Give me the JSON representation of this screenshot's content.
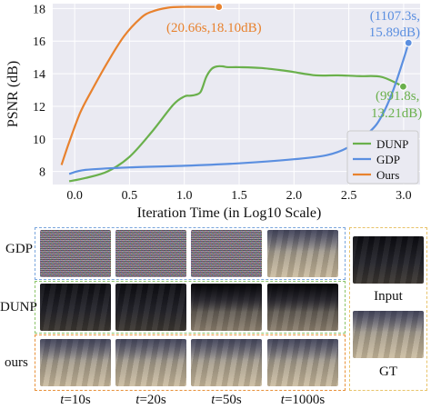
{
  "chart_data": {
    "type": "line",
    "xlabel": "Iteration Time (in Log10 Scale)",
    "ylabel": "PSNR (dB)",
    "xlim": [
      -0.2,
      3.15
    ],
    "ylim": [
      7.2,
      18.3
    ],
    "x_ticks": [
      "0.0",
      "0.5",
      "1.0",
      "1.5",
      "2.0",
      "2.5",
      "3.0"
    ],
    "y_ticks": [
      "8",
      "10",
      "12",
      "14",
      "16",
      "18"
    ],
    "grid": true,
    "legend_position": "bottom-right",
    "series": [
      {
        "name": "DUNP",
        "color": "#6ab04c",
        "x": [
          -0.05,
          0.1,
          0.3,
          0.5,
          0.7,
          0.9,
          1.0,
          1.05,
          1.1,
          1.15,
          1.2,
          1.25,
          1.3,
          1.35,
          1.4,
          1.5,
          1.7,
          1.9,
          2.0,
          2.2,
          2.4,
          2.6,
          2.8,
          2.996
        ],
        "y": [
          7.4,
          7.6,
          8.0,
          8.9,
          10.4,
          12.1,
          12.6,
          12.65,
          12.7,
          12.9,
          13.8,
          14.3,
          14.45,
          14.45,
          14.4,
          14.4,
          14.35,
          14.2,
          14.1,
          13.9,
          13.9,
          13.85,
          13.8,
          13.21
        ]
      },
      {
        "name": "GDP",
        "color": "#5b8fe0",
        "x": [
          -0.05,
          0.1,
          0.5,
          1.0,
          1.5,
          2.0,
          2.3,
          2.5,
          2.7,
          2.8,
          2.9,
          3.0,
          3.044
        ],
        "y": [
          7.85,
          8.1,
          8.25,
          8.35,
          8.5,
          8.75,
          9.0,
          9.5,
          10.5,
          11.4,
          12.9,
          14.9,
          15.89
        ]
      },
      {
        "name": "Ours",
        "color": "#e8822e",
        "x": [
          -0.12,
          -0.05,
          0.05,
          0.15,
          0.3,
          0.45,
          0.6,
          0.7,
          0.85,
          1.0,
          1.1,
          1.2,
          1.315
        ],
        "y": [
          8.4,
          9.8,
          11.6,
          12.9,
          14.7,
          16.3,
          17.4,
          17.8,
          18.05,
          18.1,
          18.1,
          18.1,
          18.1
        ]
      }
    ],
    "annotations": [
      {
        "text": "(20.66s,18.10dB)",
        "color": "#e8822e"
      },
      {
        "line1": "(1107.3s,",
        "line2": "15.89dB)",
        "color": "#5b8fe0"
      },
      {
        "line1": "(991.8s,",
        "line2": "13.21dB)",
        "color": "#6ab04c"
      }
    ]
  },
  "grid_panel": {
    "row_labels": [
      "GDP",
      "DUNP",
      "ours"
    ],
    "time_labels": [
      {
        "t": "t",
        "value": "=10s"
      },
      {
        "t": "t",
        "value": "=20s"
      },
      {
        "t": "t",
        "value": "=50s"
      },
      {
        "t": "t",
        "value": "=1000s"
      }
    ],
    "side_labels": [
      "Input",
      "GT"
    ],
    "border_colors": {
      "gdp": "#7aa6dd",
      "dunp": "#8cc46a",
      "ours": "#e8913a",
      "side": "#e8c36a"
    }
  }
}
